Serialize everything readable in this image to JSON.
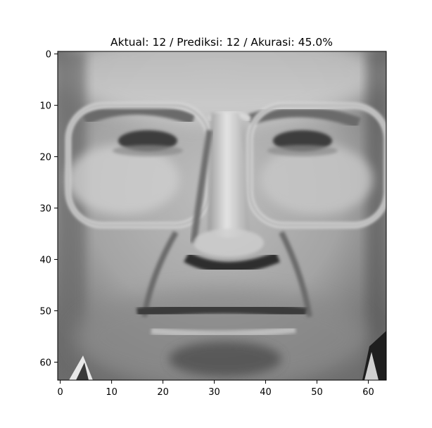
{
  "title": "Aktual: 12 / Prediksi: 12 / Akurasi: 45.0%",
  "image": {
    "subject": "grayscale-face-portrait",
    "colormap": "gray",
    "xlim": [
      -0.5,
      63.5
    ],
    "ylim": [
      63.5,
      -0.5
    ]
  },
  "axes": {
    "x_ticks": [
      0,
      10,
      20,
      30,
      40,
      50,
      60
    ],
    "x_tick_labels": [
      "0",
      "10",
      "20",
      "30",
      "40",
      "50",
      "60"
    ],
    "y_ticks": [
      0,
      10,
      20,
      30,
      40,
      50,
      60
    ],
    "y_tick_labels": [
      "0",
      "10",
      "20",
      "30",
      "40",
      "50",
      "60"
    ]
  }
}
